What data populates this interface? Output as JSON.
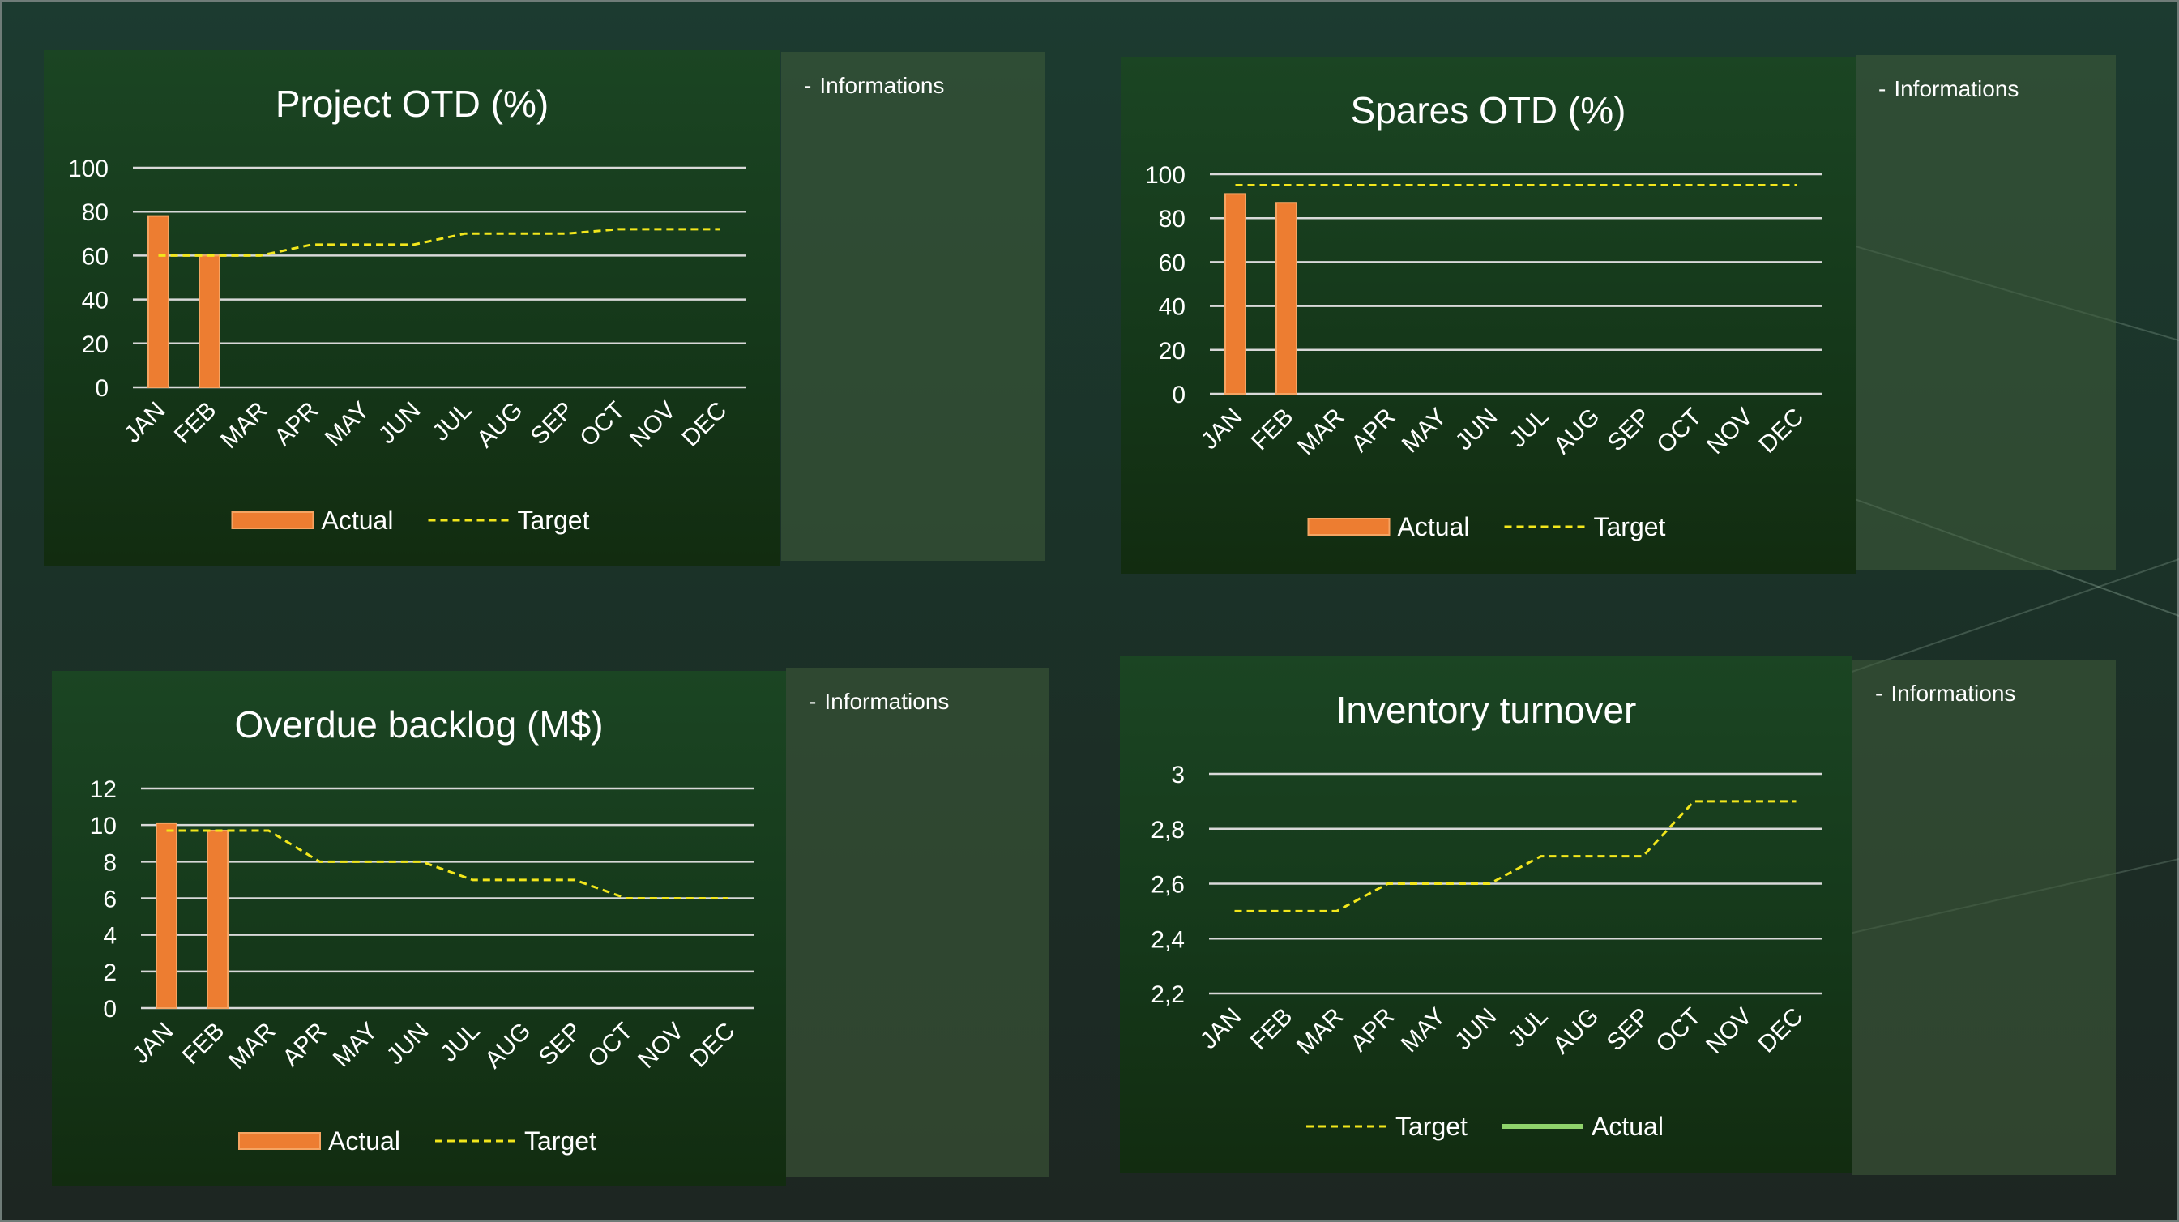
{
  "palette": {
    "bar": "#ed7d31",
    "bar_edge": "#f5a462",
    "target": "#f2e61c",
    "actual_line": "#8fd36b",
    "grid": "#d9d9d9",
    "text": "#ffffff"
  },
  "chart_data": [
    {
      "id": "project-otd",
      "type": "bar",
      "title": "Project OTD (%)",
      "categories": [
        "JAN",
        "FEB",
        "MAR",
        "APR",
        "MAY",
        "JUN",
        "JUL",
        "AUG",
        "SEP",
        "OCT",
        "NOV",
        "DEC"
      ],
      "ylim": [
        0,
        100
      ],
      "yticks": [
        "0",
        "20",
        "40",
        "60",
        "80",
        "100"
      ],
      "series": [
        {
          "name": "Actual",
          "kind": "bar",
          "values": [
            78,
            60,
            null,
            null,
            null,
            null,
            null,
            null,
            null,
            null,
            null,
            null
          ]
        },
        {
          "name": "Target",
          "kind": "dashed-line",
          "values": [
            60,
            60,
            60,
            65,
            65,
            65,
            70,
            70,
            70,
            72,
            72,
            72
          ]
        }
      ],
      "legend": "bottom",
      "grid": true,
      "info": "Informations"
    },
    {
      "id": "spares-otd",
      "type": "bar",
      "title": "Spares OTD (%)",
      "categories": [
        "JAN",
        "FEB",
        "MAR",
        "APR",
        "MAY",
        "JUN",
        "JUL",
        "AUG",
        "SEP",
        "OCT",
        "NOV",
        "DEC"
      ],
      "ylim": [
        0,
        100
      ],
      "yticks": [
        "0",
        "20",
        "40",
        "60",
        "80",
        "100"
      ],
      "series": [
        {
          "name": "Actual",
          "kind": "bar",
          "values": [
            91,
            87,
            null,
            null,
            null,
            null,
            null,
            null,
            null,
            null,
            null,
            null
          ]
        },
        {
          "name": "Target",
          "kind": "dashed-line",
          "values": [
            95,
            95,
            95,
            95,
            95,
            95,
            95,
            95,
            95,
            95,
            95,
            95
          ]
        }
      ],
      "legend": "bottom",
      "grid": true,
      "info": "Informations"
    },
    {
      "id": "overdue-backlog",
      "type": "bar",
      "title": "Overdue backlog (M$)",
      "categories": [
        "JAN",
        "FEB",
        "MAR",
        "APR",
        "MAY",
        "JUN",
        "JUL",
        "AUG",
        "SEP",
        "OCT",
        "NOV",
        "DEC"
      ],
      "ylim": [
        0,
        12
      ],
      "yticks": [
        "0",
        "2",
        "4",
        "6",
        "8",
        "10",
        "12"
      ],
      "series": [
        {
          "name": "Actual",
          "kind": "bar",
          "values": [
            10.1,
            9.7,
            null,
            null,
            null,
            null,
            null,
            null,
            null,
            null,
            null,
            null
          ]
        },
        {
          "name": "Target",
          "kind": "dashed-line",
          "values": [
            9.7,
            9.7,
            9.7,
            8,
            8,
            8,
            7,
            7,
            7,
            6,
            6,
            6
          ]
        }
      ],
      "legend": "bottom",
      "grid": true,
      "info": "Informations"
    },
    {
      "id": "inventory-turnover",
      "type": "line",
      "title": "Inventory turnover",
      "categories": [
        "JAN",
        "FEB",
        "MAR",
        "APR",
        "MAY",
        "JUN",
        "JUL",
        "AUG",
        "SEP",
        "OCT",
        "NOV",
        "DEC"
      ],
      "ylim": [
        2.2,
        3.0
      ],
      "yticks": [
        "2,2",
        "2,4",
        "2,6",
        "2,8",
        "3"
      ],
      "series": [
        {
          "name": "Target",
          "kind": "dashed-line",
          "values": [
            2.5,
            2.5,
            2.5,
            2.6,
            2.6,
            2.6,
            2.7,
            2.7,
            2.7,
            2.9,
            2.9,
            2.9
          ]
        },
        {
          "name": "Actual",
          "kind": "solid-line",
          "values": [
            null,
            null,
            null,
            null,
            null,
            null,
            null,
            null,
            null,
            null,
            null,
            null
          ]
        }
      ],
      "legend": "bottom",
      "grid": true,
      "info": "Informations"
    }
  ]
}
